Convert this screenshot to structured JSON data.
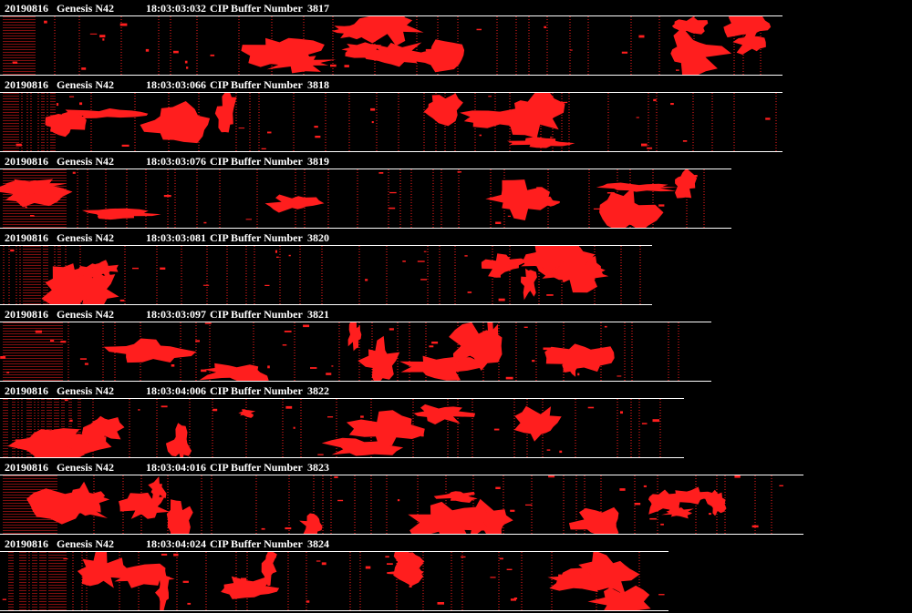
{
  "colors": {
    "background": "#000000",
    "particle": "#ff1e1e",
    "header_text": "#ffffff"
  },
  "buffers": [
    {
      "date": "20190816",
      "probe": "Genesis N42",
      "time": "18:03:03:032",
      "label": "CIP Buffer Number",
      "number": "3817"
    },
    {
      "date": "20190816",
      "probe": "Genesis N42",
      "time": "18:03:03:066",
      "label": "CIP Buffer Number",
      "number": "3818"
    },
    {
      "date": "20190816",
      "probe": "Genesis N42",
      "time": "18:03:03:076",
      "label": "CIP Buffer Number",
      "number": "3819"
    },
    {
      "date": "20190816",
      "probe": "Genesis N42",
      "time": "18:03:03:081",
      "label": "CIP Buffer Number",
      "number": "3820"
    },
    {
      "date": "20190816",
      "probe": "Genesis N42",
      "time": "18:03:03:097",
      "label": "CIP Buffer Number",
      "number": "3821"
    },
    {
      "date": "20190816",
      "probe": "Genesis N42",
      "time": "18:03:04:006",
      "label": "CIP Buffer Number",
      "number": "3822"
    },
    {
      "date": "20190816",
      "probe": "Genesis N42",
      "time": "18:03:04:016",
      "label": "CIP Buffer Number",
      "number": "3823"
    },
    {
      "date": "20190816",
      "probe": "Genesis N42",
      "time": "18:03:04:024",
      "label": "CIP Buffer Number",
      "number": "3824"
    }
  ]
}
